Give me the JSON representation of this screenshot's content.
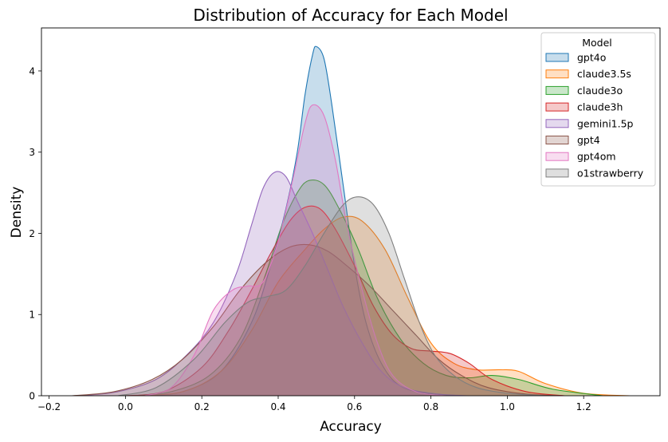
{
  "chart_data": {
    "type": "area",
    "title": "Distribution of Accuracy for Each Model",
    "xlabel": "Accuracy",
    "ylabel": "Density",
    "xlim": [
      -0.22,
      1.4
    ],
    "ylim": [
      0,
      4.53
    ],
    "xticks": [
      -0.2,
      0.0,
      0.2,
      0.4,
      0.6,
      0.8,
      1.0,
      1.2
    ],
    "xtick_labels": [
      "−0.2",
      "0.0",
      "0.2",
      "0.4",
      "0.6",
      "0.8",
      "1.0",
      "1.2"
    ],
    "yticks": [
      0,
      1,
      2,
      3,
      4
    ],
    "ytick_labels": [
      "0",
      "1",
      "2",
      "3",
      "4"
    ],
    "grid": false,
    "legend": {
      "title": "Model",
      "placement": "top-right"
    },
    "series": [
      {
        "name": "gpt4o",
        "color": "#1f77b4",
        "points": [
          [
            0.05,
            0
          ],
          [
            0.15,
            0.05
          ],
          [
            0.25,
            0.3
          ],
          [
            0.33,
            0.9
          ],
          [
            0.38,
            1.6
          ],
          [
            0.42,
            2.3
          ],
          [
            0.45,
            3.0
          ],
          [
            0.47,
            3.7
          ],
          [
            0.49,
            4.2
          ],
          [
            0.5,
            4.3
          ],
          [
            0.52,
            4.15
          ],
          [
            0.54,
            3.6
          ],
          [
            0.57,
            2.6
          ],
          [
            0.6,
            1.6
          ],
          [
            0.63,
            0.9
          ],
          [
            0.67,
            0.4
          ],
          [
            0.72,
            0.12
          ],
          [
            0.8,
            0.02
          ],
          [
            0.88,
            0
          ]
        ]
      },
      {
        "name": "claude3.5s",
        "color": "#ff7f0e",
        "points": [
          [
            0.02,
            0
          ],
          [
            0.15,
            0.05
          ],
          [
            0.25,
            0.3
          ],
          [
            0.33,
            0.8
          ],
          [
            0.4,
            1.4
          ],
          [
            0.47,
            1.8
          ],
          [
            0.52,
            2.05
          ],
          [
            0.57,
            2.2
          ],
          [
            0.62,
            2.15
          ],
          [
            0.68,
            1.8
          ],
          [
            0.74,
            1.2
          ],
          [
            0.8,
            0.65
          ],
          [
            0.86,
            0.4
          ],
          [
            0.92,
            0.32
          ],
          [
            0.98,
            0.32
          ],
          [
            1.03,
            0.3
          ],
          [
            1.1,
            0.15
          ],
          [
            1.2,
            0.03
          ],
          [
            1.32,
            0
          ]
        ]
      },
      {
        "name": "claude3o",
        "color": "#2ca02c",
        "points": [
          [
            0.02,
            0
          ],
          [
            0.12,
            0.05
          ],
          [
            0.22,
            0.25
          ],
          [
            0.3,
            0.7
          ],
          [
            0.36,
            1.4
          ],
          [
            0.41,
            2.1
          ],
          [
            0.45,
            2.5
          ],
          [
            0.48,
            2.65
          ],
          [
            0.52,
            2.6
          ],
          [
            0.56,
            2.3
          ],
          [
            0.61,
            1.8
          ],
          [
            0.66,
            1.2
          ],
          [
            0.72,
            0.7
          ],
          [
            0.78,
            0.4
          ],
          [
            0.84,
            0.25
          ],
          [
            0.9,
            0.22
          ],
          [
            0.96,
            0.25
          ],
          [
            1.03,
            0.2
          ],
          [
            1.12,
            0.08
          ],
          [
            1.25,
            0
          ]
        ]
      },
      {
        "name": "claude3h",
        "color": "#d62728",
        "points": [
          [
            0.0,
            0
          ],
          [
            0.1,
            0.05
          ],
          [
            0.2,
            0.35
          ],
          [
            0.27,
            0.8
          ],
          [
            0.33,
            1.3
          ],
          [
            0.38,
            1.75
          ],
          [
            0.43,
            2.15
          ],
          [
            0.47,
            2.32
          ],
          [
            0.51,
            2.3
          ],
          [
            0.55,
            2.05
          ],
          [
            0.6,
            1.6
          ],
          [
            0.65,
            1.1
          ],
          [
            0.7,
            0.75
          ],
          [
            0.75,
            0.58
          ],
          [
            0.8,
            0.55
          ],
          [
            0.85,
            0.52
          ],
          [
            0.9,
            0.4
          ],
          [
            0.96,
            0.2
          ],
          [
            1.05,
            0.05
          ],
          [
            1.15,
            0
          ]
        ]
      },
      {
        "name": "gemini1.5p",
        "color": "#9467bd",
        "points": [
          [
            -0.12,
            0
          ],
          [
            -0.02,
            0.05
          ],
          [
            0.08,
            0.2
          ],
          [
            0.16,
            0.5
          ],
          [
            0.23,
            0.9
          ],
          [
            0.29,
            1.5
          ],
          [
            0.33,
            2.1
          ],
          [
            0.36,
            2.55
          ],
          [
            0.39,
            2.75
          ],
          [
            0.42,
            2.7
          ],
          [
            0.45,
            2.4
          ],
          [
            0.49,
            2.0
          ],
          [
            0.53,
            1.55
          ],
          [
            0.57,
            1.1
          ],
          [
            0.62,
            0.65
          ],
          [
            0.67,
            0.3
          ],
          [
            0.73,
            0.1
          ],
          [
            0.82,
            0.02
          ],
          [
            0.9,
            0
          ]
        ]
      },
      {
        "name": "gpt4",
        "color": "#8c564b",
        "points": [
          [
            -0.14,
            0
          ],
          [
            -0.03,
            0.05
          ],
          [
            0.07,
            0.2
          ],
          [
            0.15,
            0.45
          ],
          [
            0.23,
            0.85
          ],
          [
            0.3,
            1.3
          ],
          [
            0.37,
            1.65
          ],
          [
            0.43,
            1.83
          ],
          [
            0.48,
            1.86
          ],
          [
            0.53,
            1.78
          ],
          [
            0.58,
            1.6
          ],
          [
            0.64,
            1.35
          ],
          [
            0.7,
            1.05
          ],
          [
            0.76,
            0.75
          ],
          [
            0.82,
            0.45
          ],
          [
            0.88,
            0.25
          ],
          [
            0.95,
            0.1
          ],
          [
            1.05,
            0.02
          ],
          [
            1.15,
            0
          ]
        ]
      },
      {
        "name": "gpt4om",
        "color": "#e377c2",
        "points": [
          [
            0.05,
            0
          ],
          [
            0.12,
            0.1
          ],
          [
            0.18,
            0.5
          ],
          [
            0.23,
            1.05
          ],
          [
            0.28,
            1.3
          ],
          [
            0.32,
            1.35
          ],
          [
            0.36,
            1.4
          ],
          [
            0.4,
            1.9
          ],
          [
            0.44,
            2.7
          ],
          [
            0.47,
            3.35
          ],
          [
            0.49,
            3.58
          ],
          [
            0.52,
            3.45
          ],
          [
            0.55,
            2.9
          ],
          [
            0.58,
            2.1
          ],
          [
            0.62,
            1.3
          ],
          [
            0.66,
            0.65
          ],
          [
            0.7,
            0.25
          ],
          [
            0.76,
            0.05
          ],
          [
            0.84,
            0
          ]
        ]
      },
      {
        "name": "o1strawberry",
        "color": "#7f7f7f",
        "points": [
          [
            -0.02,
            0
          ],
          [
            0.08,
            0.1
          ],
          [
            0.18,
            0.45
          ],
          [
            0.26,
            0.9
          ],
          [
            0.32,
            1.15
          ],
          [
            0.37,
            1.22
          ],
          [
            0.42,
            1.3
          ],
          [
            0.47,
            1.6
          ],
          [
            0.52,
            2.0
          ],
          [
            0.57,
            2.35
          ],
          [
            0.61,
            2.45
          ],
          [
            0.65,
            2.35
          ],
          [
            0.69,
            2.0
          ],
          [
            0.73,
            1.45
          ],
          [
            0.77,
            0.9
          ],
          [
            0.81,
            0.5
          ],
          [
            0.86,
            0.25
          ],
          [
            0.92,
            0.1
          ],
          [
            1.0,
            0.03
          ],
          [
            1.1,
            0
          ]
        ]
      }
    ]
  }
}
